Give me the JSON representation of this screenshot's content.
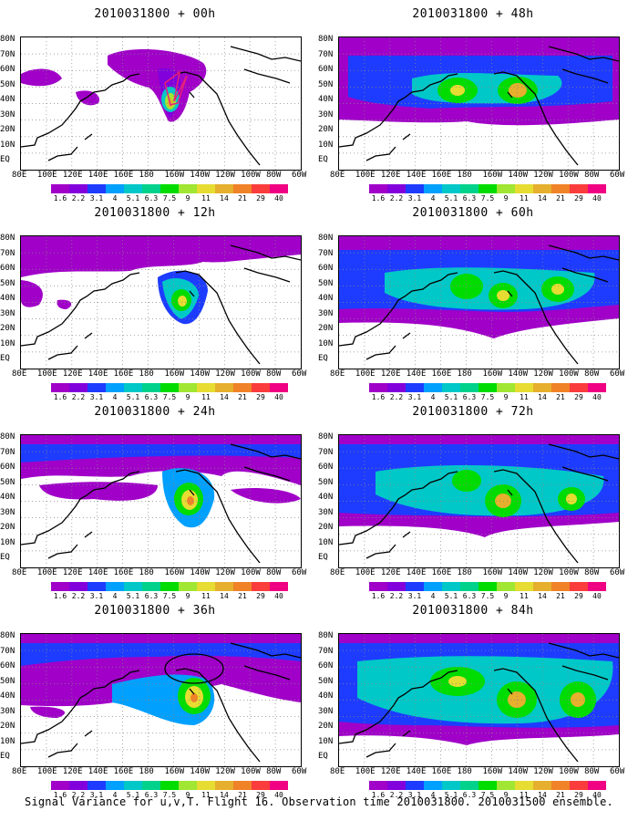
{
  "caption": "Signal Variance for u,v,T. Flight 16. Observation time 2010031800. 2010031500 ensemble.",
  "lat_labels": [
    "80N",
    "70N",
    "60N",
    "50N",
    "40N",
    "30N",
    "20N",
    "10N",
    "EQ"
  ],
  "lon_labels": [
    "80E",
    "100E",
    "120E",
    "140E",
    "160E",
    "180",
    "160W",
    "140W",
    "120W",
    "100W",
    "80W",
    "60W"
  ],
  "colorbar": {
    "levels": [
      "1.6",
      "2.2",
      "3.1",
      "4",
      "5.1",
      "6.3",
      "7.5",
      "9",
      "11",
      "14",
      "21",
      "29",
      "40"
    ],
    "colors": [
      "#a000c8",
      "#8200dc",
      "#1e3cff",
      "#00a0ff",
      "#00c8c8",
      "#00d28c",
      "#00dc00",
      "#a0e632",
      "#e6dc32",
      "#e6af2d",
      "#f08228",
      "#fa3c3c",
      "#f00082"
    ]
  },
  "panels": [
    {
      "title": "2010031800 + 00h",
      "col": 0,
      "row": 0
    },
    {
      "title": "2010031800 + 12h",
      "col": 0,
      "row": 1
    },
    {
      "title": "2010031800 + 24h",
      "col": 0,
      "row": 2
    },
    {
      "title": "2010031800 + 36h",
      "col": 0,
      "row": 3
    },
    {
      "title": "2010031800 + 48h",
      "col": 1,
      "row": 0
    },
    {
      "title": "2010031800 + 60h",
      "col": 1,
      "row": 1
    },
    {
      "title": "2010031800 + 72h",
      "col": 1,
      "row": 2
    },
    {
      "title": "2010031800 + 84h",
      "col": 1,
      "row": 3
    }
  ]
}
